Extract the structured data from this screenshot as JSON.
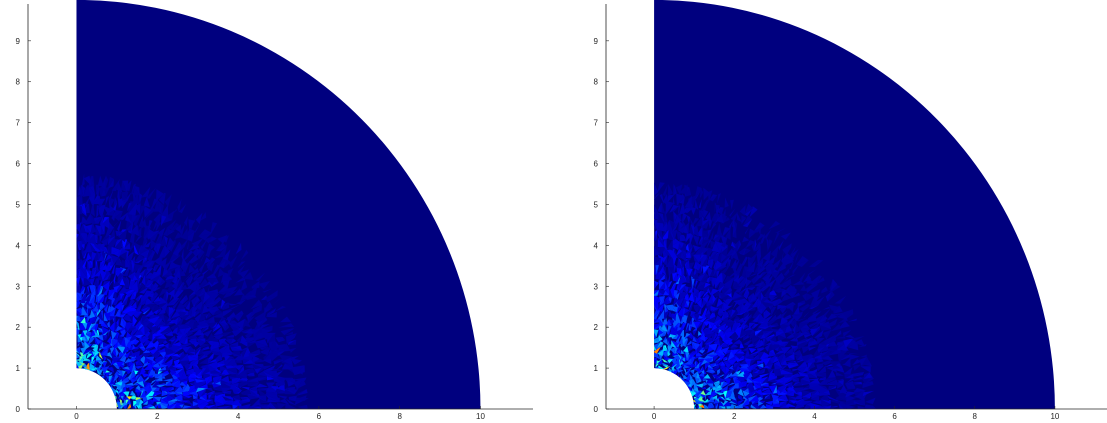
{
  "chart_data": [
    {
      "type": "heatmap",
      "description_kind": "finite element mesh field plot on quarter annulus",
      "geometry": {
        "inner_radius": 1,
        "outer_radius": 10,
        "angle_start_deg": 0,
        "angle_end_deg": 90
      },
      "xlim": [
        -1.2,
        11.3
      ],
      "ylim": [
        0,
        9.9
      ],
      "x_ticks": [
        0,
        2,
        4,
        6,
        8,
        10
      ],
      "y_ticks": [
        0,
        1,
        2,
        3,
        4,
        5,
        6,
        7,
        8,
        9
      ],
      "x_tick_labels": [
        "0",
        "2",
        "4",
        "6",
        "8",
        "10"
      ],
      "y_tick_labels": [
        "0",
        "1",
        "2",
        "3",
        "4",
        "5",
        "6",
        "7",
        "8",
        "9"
      ],
      "background_color": "#00007f",
      "hotspot_radius": 4.5,
      "seed": 7
    },
    {
      "type": "heatmap",
      "description_kind": "finite element mesh field plot on quarter annulus",
      "geometry": {
        "inner_radius": 1,
        "outer_radius": 10,
        "angle_start_deg": 0,
        "angle_end_deg": 90
      },
      "xlim": [
        -1.2,
        11.3
      ],
      "ylim": [
        0,
        9.9
      ],
      "x_ticks": [
        0,
        2,
        4,
        6,
        8,
        10
      ],
      "y_ticks": [
        0,
        1,
        2,
        3,
        4,
        5,
        6,
        7,
        8,
        9
      ],
      "x_tick_labels": [
        "0",
        "2",
        "4",
        "6",
        "8",
        "10"
      ],
      "y_tick_labels": [
        "0",
        "1",
        "2",
        "3",
        "4",
        "5",
        "6",
        "7",
        "8",
        "9"
      ],
      "background_color": "#00007f",
      "hotspot_radius": 4.3,
      "seed": 13
    }
  ],
  "colormap": [
    "#00007f",
    "#0000ff",
    "#007fff",
    "#00ffff",
    "#7fff7f",
    "#ffff00",
    "#ff7f00"
  ]
}
